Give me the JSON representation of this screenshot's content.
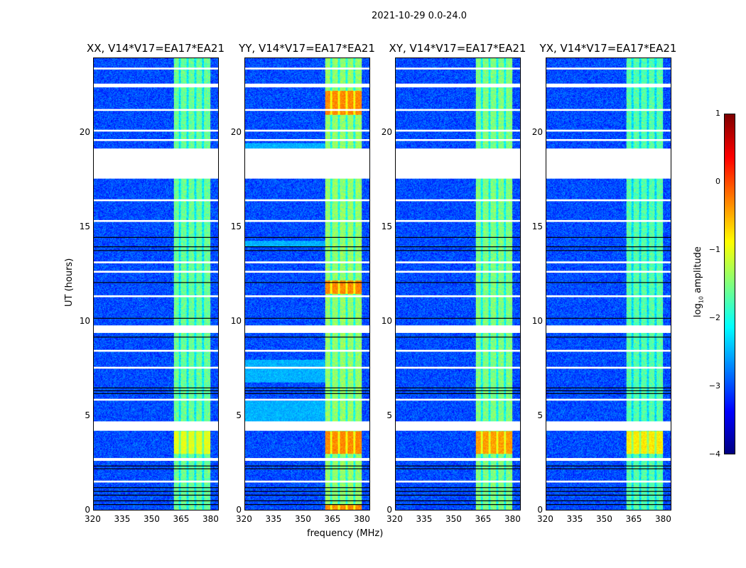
{
  "chart_data": {
    "type": "heatmap",
    "title": "2021-10-29 0.0-24.0",
    "xlabel": "frequency (MHz)",
    "ylabel": "UT (hours)",
    "xlim": [
      320,
      384
    ],
    "ylim": [
      0,
      24
    ],
    "xticks": [
      "320",
      "335",
      "350",
      "365",
      "380"
    ],
    "yticks": [
      "0",
      "5",
      "10",
      "15",
      "20"
    ],
    "colorbar": {
      "label": "log10 amplitude",
      "label_main": "log",
      "label_sub": "10",
      "label_tail": " amplitude",
      "range": [
        -4,
        1
      ],
      "ticks": [
        "1",
        "0",
        "−1",
        "−2",
        "−3",
        "−4"
      ],
      "colormap": "jet"
    },
    "flagged_hours": [
      [
        22.45,
        22.65
      ],
      [
        17.6,
        19.2
      ],
      [
        9.4,
        9.8
      ],
      [
        4.2,
        4.7
      ],
      [
        2.6,
        2.75
      ],
      [
        1.45,
        1.55
      ],
      [
        19.6,
        19.7
      ],
      [
        20.1,
        20.2
      ],
      [
        15.3,
        15.4
      ],
      [
        11.3,
        11.4
      ],
      [
        8.4,
        8.5
      ],
      [
        5.8,
        5.9
      ],
      [
        7.5,
        7.6
      ],
      [
        13.1,
        13.2
      ],
      [
        16.4,
        16.5
      ],
      [
        21.2,
        21.3
      ],
      [
        23.4,
        23.5
      ],
      [
        12.6,
        12.7
      ]
    ],
    "dark_lines_hours": [
      0.3,
      0.5,
      0.8,
      1.0,
      1.2,
      2.2,
      2.35,
      6.2,
      6.35,
      6.5,
      9.2,
      10.2,
      12.1,
      13.8,
      14.0,
      14.5
    ],
    "band_MHz": [
      361,
      380
    ],
    "background_level": -3.0,
    "panels": [
      {
        "title": "XX, V14*V17=EA17*EA21",
        "band_level": -1.6,
        "peak_level": -1.0,
        "peak_hours": [
          [
            3.0,
            4.2
          ]
        ]
      },
      {
        "title": "YY, V14*V17=EA17*EA21",
        "band_level": -1.4,
        "peak_level": -0.3,
        "peak_hours": [
          [
            3.0,
            4.2
          ],
          [
            0,
            0.3
          ],
          [
            21,
            22.3
          ],
          [
            11.5,
            12.2
          ]
        ],
        "low_band_hours": [
          [
            4.7,
            5.8
          ],
          [
            6.8,
            8
          ],
          [
            19.2,
            19.5
          ],
          [
            14,
            14.3
          ]
        ]
      },
      {
        "title": "XY, V14*V17=EA17*EA21",
        "band_level": -1.5,
        "peak_level": -0.4,
        "peak_hours": [
          [
            3.0,
            4.2
          ]
        ]
      },
      {
        "title": "YX, V14*V17=EA17*EA21",
        "band_level": -1.7,
        "peak_level": -0.8,
        "peak_hours": [
          [
            3.0,
            4.2
          ]
        ]
      }
    ]
  }
}
